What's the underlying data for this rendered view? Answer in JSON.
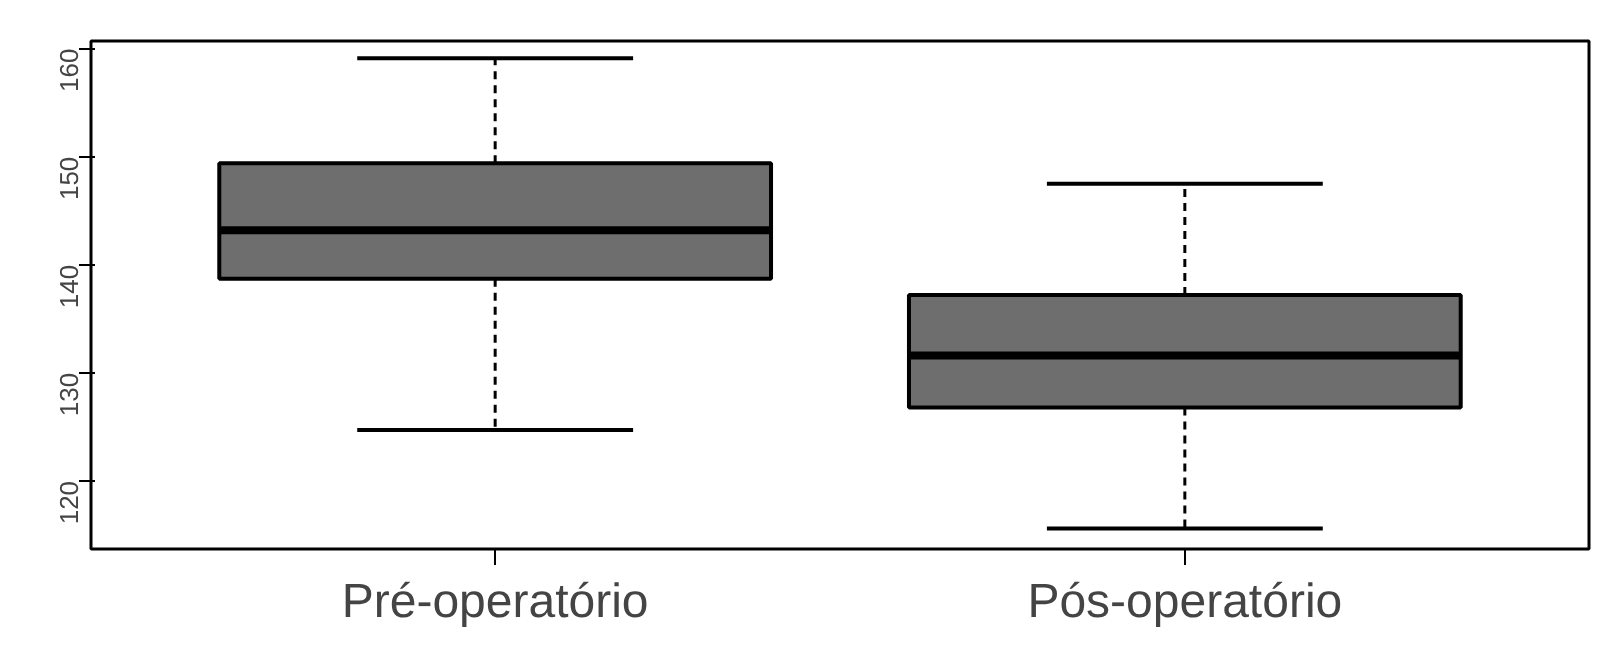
{
  "chart_data": {
    "type": "box",
    "categories": [
      "Pré-operatório",
      "Pós-operatório"
    ],
    "boxes": [
      {
        "low": 124.7,
        "q1": 138.7,
        "median": 143.2,
        "q3": 149.4,
        "high": 159.1
      },
      {
        "low": 115.6,
        "q1": 126.8,
        "median": 131.6,
        "q3": 137.2,
        "high": 147.5
      }
    ],
    "color": "#6e6e6e",
    "ylim": [
      113.7,
      160.7
    ],
    "yticks": [
      120,
      130,
      140,
      150,
      160
    ],
    "grid": false
  }
}
